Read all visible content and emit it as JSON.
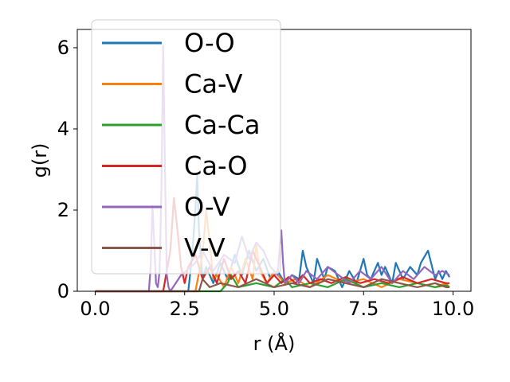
{
  "chart_data": {
    "type": "line",
    "title": "",
    "xlabel": "r (Å)",
    "ylabel": "g(r)",
    "xlim": [
      -0.5,
      10.5
    ],
    "ylim": [
      0,
      6.45
    ],
    "xticks": [
      0.0,
      2.5,
      5.0,
      7.5,
      10.0
    ],
    "xtick_labels": [
      "0.0",
      "2.5",
      "5.0",
      "7.5",
      "10.0"
    ],
    "yticks": [
      0,
      2,
      4,
      6
    ],
    "ytick_labels": [
      "0",
      "2",
      "4",
      "6"
    ],
    "grid": false,
    "legend_position": "upper-left",
    "series": [
      {
        "name": "O-O",
        "color": "#1f77b4",
        "x": [
          0,
          1.5,
          2.6,
          2.7,
          2.8,
          2.85,
          2.9,
          3.0,
          3.1,
          3.3,
          3.5,
          3.7,
          3.9,
          4.1,
          4.3,
          4.5,
          4.7,
          4.9,
          5.1,
          5.3,
          5.5,
          5.7,
          5.8,
          5.9,
          6.1,
          6.2,
          6.4,
          6.5,
          6.7,
          6.9,
          7.1,
          7.3,
          7.5,
          7.6,
          7.7,
          7.9,
          8.0,
          8.1,
          8.3,
          8.4,
          8.6,
          8.8,
          9.0,
          9.1,
          9.3,
          9.5,
          9.6,
          9.7,
          9.8,
          9.9
        ],
        "y": [
          0,
          0,
          0,
          0.8,
          2.0,
          2.85,
          1.5,
          0.3,
          0.6,
          0.2,
          0.7,
          0.3,
          0.9,
          0.4,
          1.0,
          0.5,
          0.8,
          0.3,
          0.5,
          0.2,
          0.4,
          0.3,
          1.0,
          0.6,
          0.2,
          0.8,
          0.3,
          0.6,
          0.5,
          0.1,
          0.5,
          0.2,
          0.8,
          0.4,
          0.3,
          0.7,
          0.4,
          0.6,
          0.2,
          0.7,
          0.3,
          0.6,
          0.4,
          0.7,
          1.0,
          0.3,
          0.5,
          0.3,
          0.5,
          0.35
        ]
      },
      {
        "name": "Ca-V",
        "color": "#ff7f0e",
        "x": [
          0,
          2.8,
          3.0,
          3.1,
          3.2,
          3.3,
          3.4,
          3.6,
          3.8,
          4.0,
          4.2,
          4.4,
          4.5,
          4.6,
          4.8,
          5.0,
          5.3,
          5.6,
          6.0,
          6.5,
          7.0,
          7.5,
          8.0,
          8.5,
          9.0,
          9.5,
          9.8,
          9.9
        ],
        "y": [
          0,
          0,
          0.9,
          2.0,
          1.2,
          0.3,
          0.4,
          0.1,
          0.6,
          0.2,
          0.8,
          0.3,
          1.15,
          0.5,
          0.2,
          0.5,
          0.2,
          0.3,
          0.1,
          0.4,
          0.2,
          0.3,
          0.1,
          0.3,
          0.2,
          0.1,
          0.2,
          0.1
        ]
      },
      {
        "name": "Ca-Ca",
        "color": "#2ca02c",
        "x": [
          0,
          3.0,
          3.5,
          3.7,
          3.8,
          4.0,
          4.5,
          5.0,
          5.3,
          5.5,
          6.0,
          6.5,
          7.0,
          7.5,
          8.0,
          8.5,
          9.0,
          9.5,
          9.8,
          9.9
        ],
        "y": [
          0,
          0,
          0,
          0.2,
          0.4,
          0.1,
          0.2,
          0.1,
          0.3,
          0.1,
          0.2,
          0.1,
          0.3,
          0.1,
          0.2,
          0.1,
          0.2,
          0.1,
          0.15,
          0.1
        ]
      },
      {
        "name": "Ca-O",
        "color": "#d62728",
        "x": [
          0,
          1.7,
          1.9,
          2.0,
          2.1,
          2.2,
          2.3,
          2.4,
          2.5,
          2.6,
          2.8,
          3.0,
          3.2,
          3.4,
          3.6,
          3.8,
          4.0,
          4.2,
          4.4,
          4.6,
          4.8,
          5.0,
          5.2,
          5.4,
          5.6,
          5.8,
          6.0,
          6.3,
          6.6,
          7.0,
          7.4,
          7.8,
          8.2,
          8.6,
          9.0,
          9.4,
          9.8,
          9.9
        ],
        "y": [
          0,
          0,
          0,
          0.5,
          1.0,
          2.3,
          1.5,
          0.6,
          0.2,
          0.6,
          0.9,
          0.3,
          0.6,
          0.2,
          0.8,
          0.3,
          0.5,
          0.2,
          1.0,
          0.6,
          0.2,
          0.4,
          0.2,
          0.35,
          0.2,
          0.4,
          0.2,
          0.3,
          0.2,
          0.35,
          0.2,
          0.3,
          0.2,
          0.35,
          0.2,
          0.3,
          0.2,
          0.2
        ]
      },
      {
        "name": "O-V",
        "color": "#9467bd",
        "x": [
          0,
          1.5,
          1.55,
          1.6,
          1.65,
          1.7,
          1.75,
          1.8,
          1.85,
          1.9,
          1.95,
          2.0,
          2.05,
          2.1,
          2.4,
          2.8,
          3.0,
          3.3,
          3.6,
          3.9,
          4.1,
          4.3,
          4.5,
          4.7,
          4.9,
          5.1,
          5.15,
          5.2,
          5.25,
          5.3,
          5.5,
          5.7,
          5.9,
          6.2,
          6.5,
          6.8,
          7.1,
          7.4,
          7.7,
          8.0,
          8.3,
          8.6,
          8.9,
          9.2,
          9.5,
          9.7,
          9.9
        ],
        "y": [
          0,
          0,
          0.6,
          2.1,
          1.2,
          0.2,
          0.1,
          0.5,
          2.5,
          6.05,
          3.0,
          0.4,
          0.1,
          0,
          0.4,
          0.7,
          1.0,
          0.5,
          0.9,
          0.7,
          1.35,
          0.8,
          1.2,
          1.0,
          0.6,
          0.4,
          1.0,
          1.5,
          0.7,
          0.2,
          0.4,
          0.2,
          0.5,
          0.3,
          0.6,
          0.4,
          0.2,
          0.5,
          0.3,
          0.6,
          0.2,
          0.5,
          0.3,
          0.6,
          0.4,
          0.5,
          0.4
        ]
      },
      {
        "name": "V-V",
        "color": "#8c564b",
        "x": [
          0,
          2.6,
          2.9,
          3.0,
          3.2,
          3.5,
          4.0,
          4.5,
          5.0,
          5.5,
          6.0,
          6.5,
          7.0,
          7.5,
          8.0,
          8.5,
          9.0,
          9.5,
          9.8,
          9.9
        ],
        "y": [
          0,
          0,
          0,
          0.3,
          0.1,
          0.2,
          0.1,
          0.3,
          0.1,
          0.2,
          0.1,
          0.3,
          0.2,
          0.1,
          0.3,
          0.2,
          0.1,
          0.2,
          0.1,
          0.1
        ]
      }
    ]
  }
}
